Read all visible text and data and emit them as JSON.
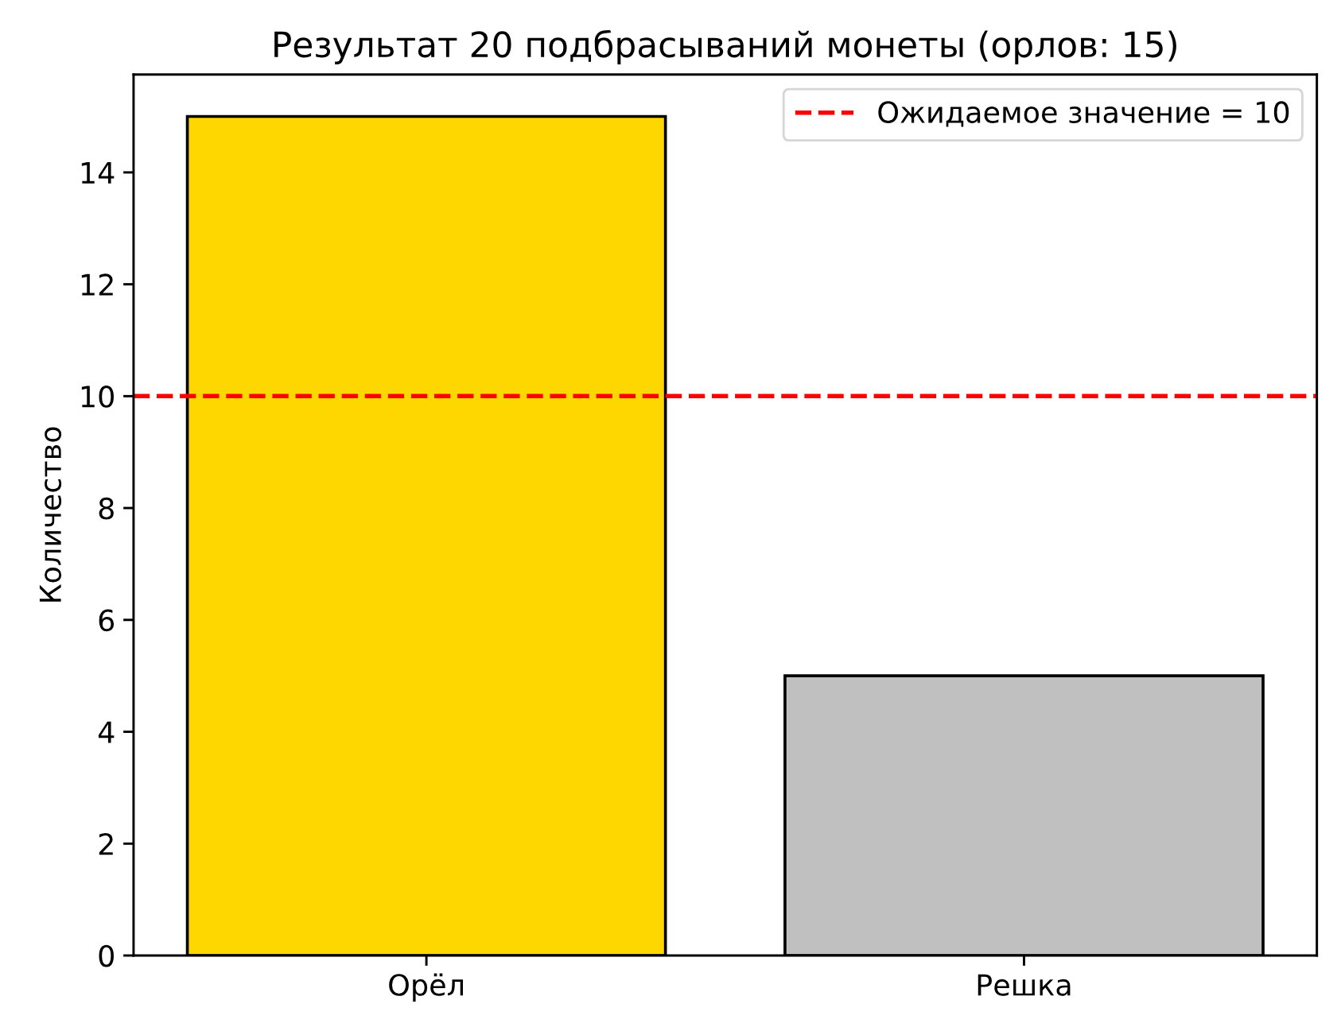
{
  "chart_data": {
    "type": "bar",
    "title": "Результат 20 подбрасываний монеты (орлов: 15)",
    "ylabel": "Количество",
    "categories": [
      "Орёл",
      "Решка"
    ],
    "values": [
      15,
      5
    ],
    "colors": [
      "#ffd700",
      "#c0c0c0"
    ],
    "ylim": [
      0,
      15.75
    ],
    "yticks": [
      0,
      2,
      4,
      6,
      8,
      10,
      12,
      14
    ],
    "ref_lines": [
      {
        "axis": "y",
        "value": 10,
        "label": "Ожидаемое значение = 10",
        "color": "#ff0000",
        "line_style": "dashed"
      }
    ],
    "legend": "top right",
    "grid": false
  }
}
